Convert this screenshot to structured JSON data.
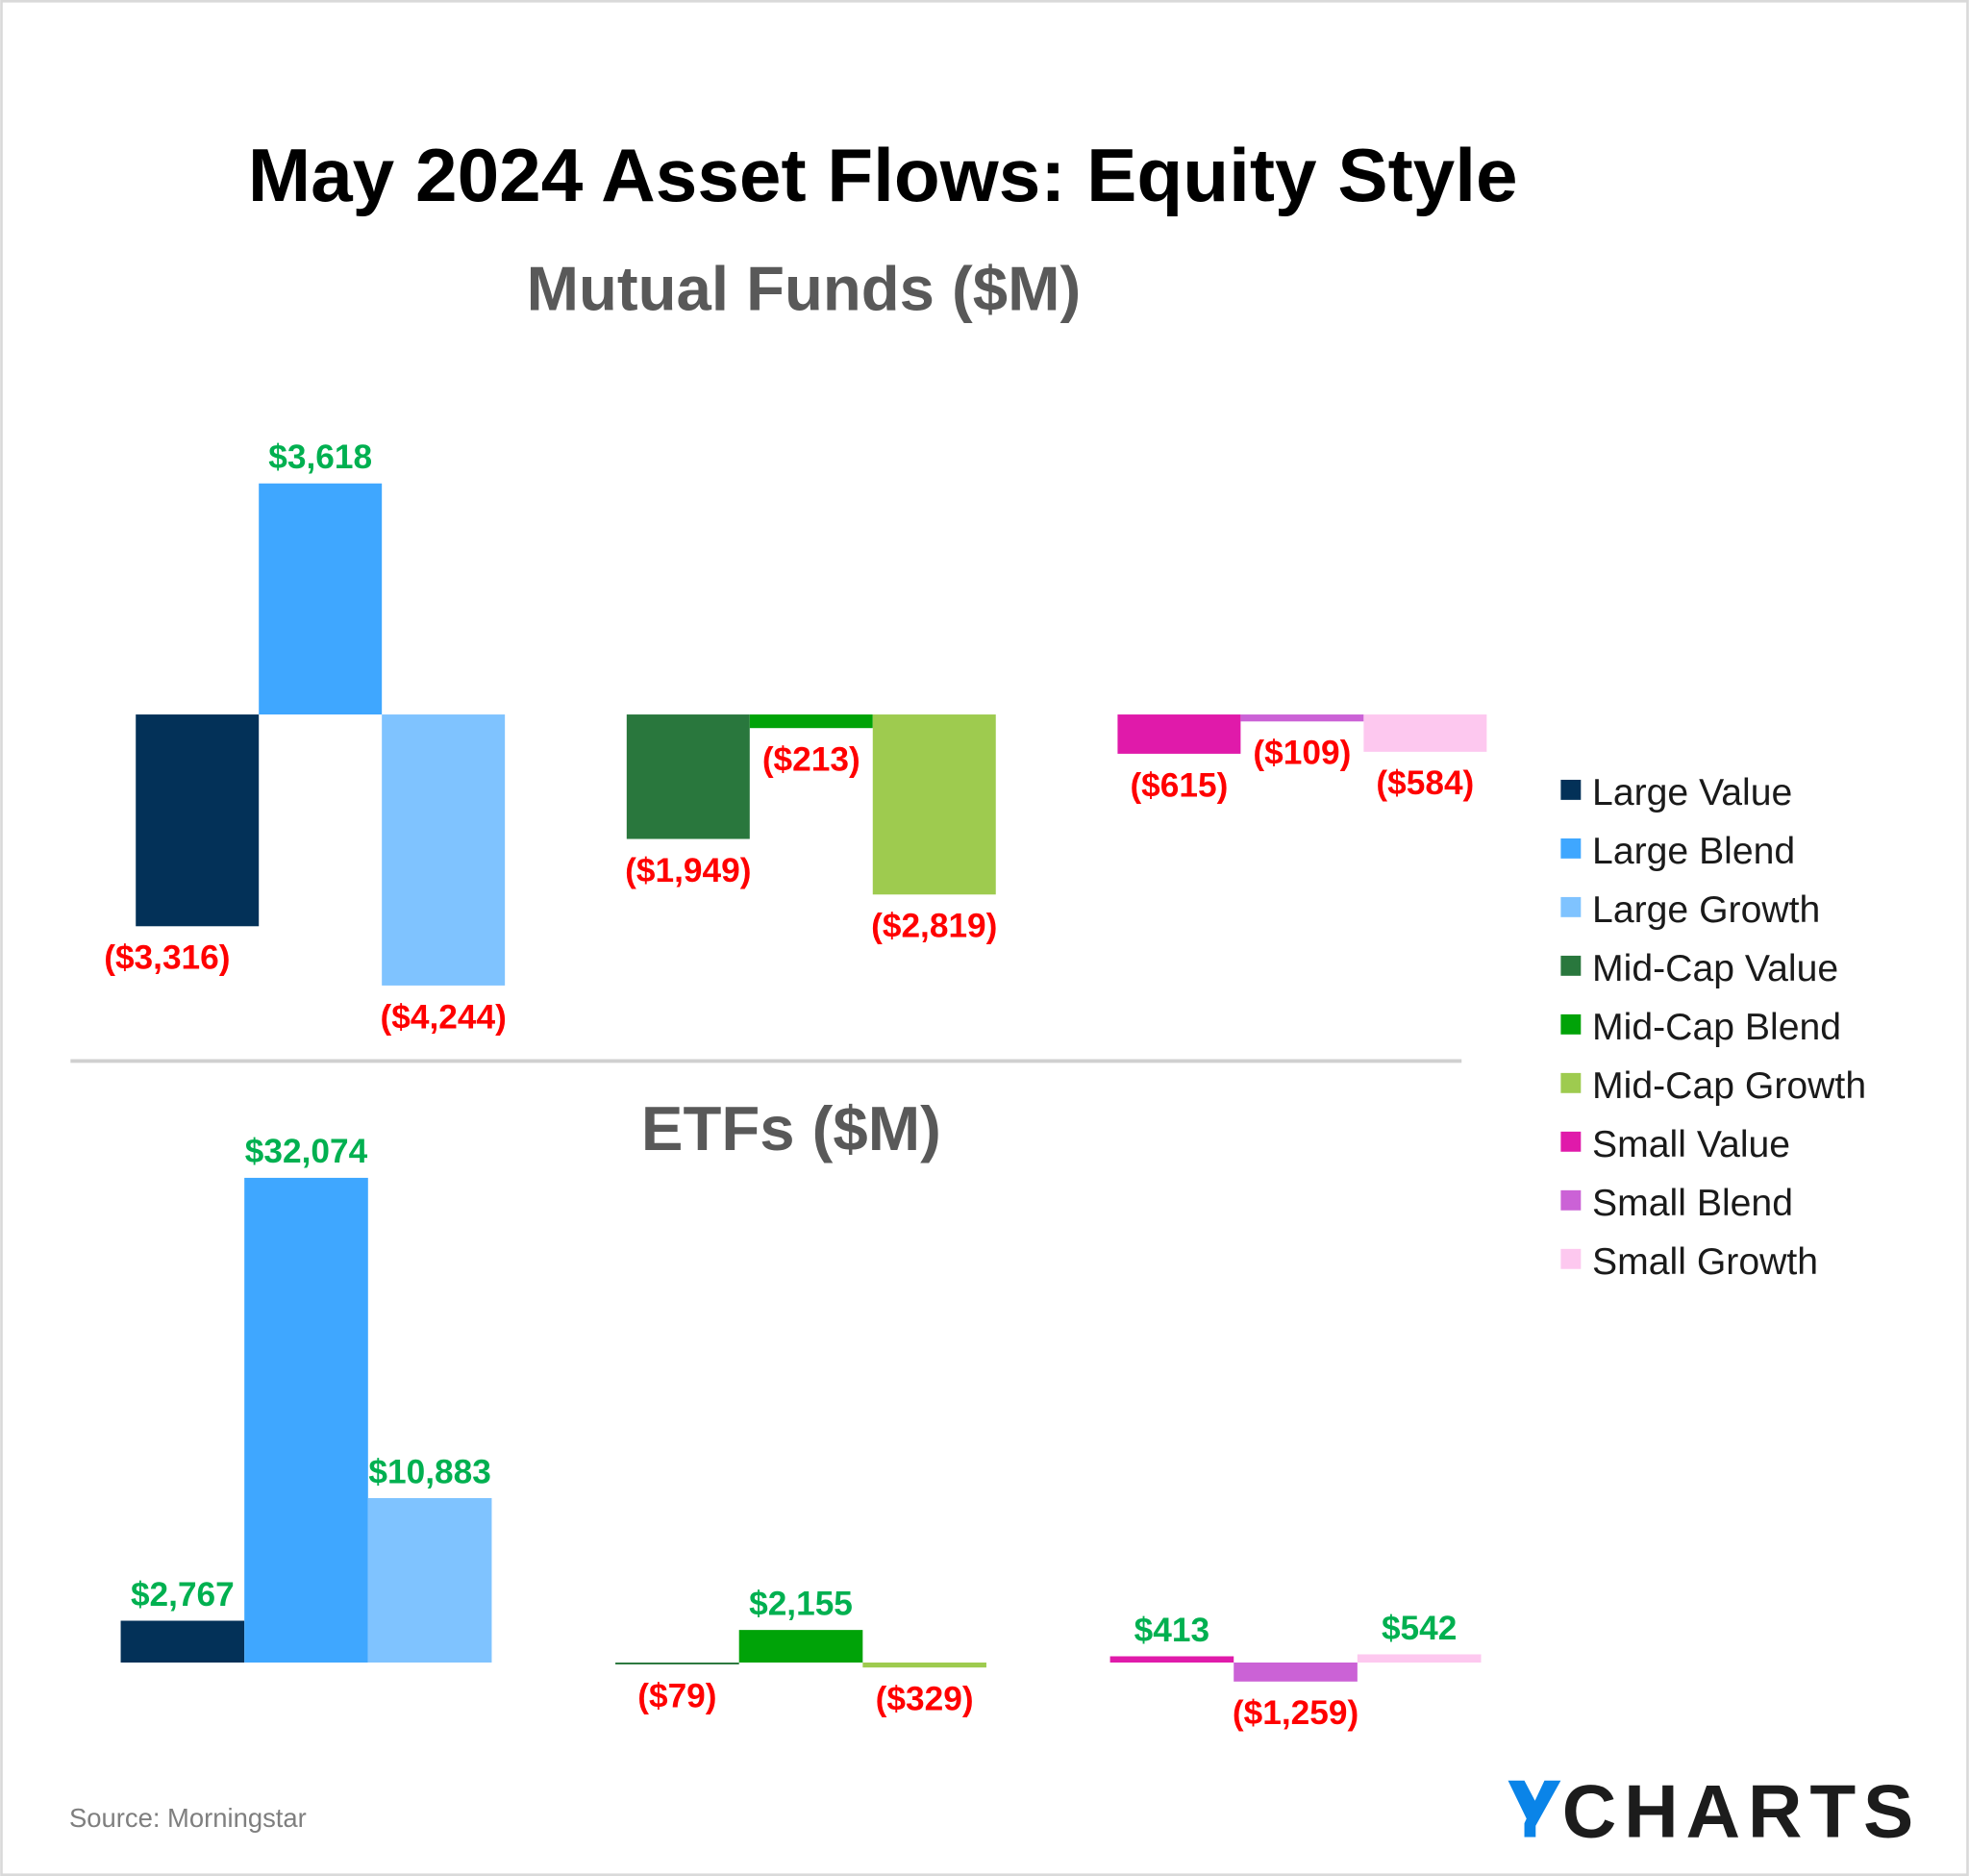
{
  "title": "May 2024 Asset Flows: Equity Style",
  "source": "Source: Morningstar",
  "logo": "YCHARTS",
  "colors": {
    "positive_label": "#00b050",
    "negative_label": "#ff0000",
    "logo_y": "#0a84e8",
    "logo_text": "#1c1c1c"
  },
  "legend": [
    {
      "name": "Large Value",
      "color": "#033158"
    },
    {
      "name": "Large Blend",
      "color": "#3fa7ff"
    },
    {
      "name": "Large Growth",
      "color": "#7fc3ff"
    },
    {
      "name": "Mid-Cap Value",
      "color": "#29773d"
    },
    {
      "name": "Mid-Cap Blend",
      "color": "#00a308"
    },
    {
      "name": "Mid-Cap Growth",
      "color": "#9ecb4f"
    },
    {
      "name": "Small Value",
      "color": "#e01aaa"
    },
    {
      "name": "Small Blend",
      "color": "#cb62d6"
    },
    {
      "name": "Small Growth",
      "color": "#fdc8ef"
    }
  ],
  "chart_data": [
    {
      "type": "bar",
      "title": "Mutual Funds ($M)",
      "categories": [
        "Large Value",
        "Large Blend",
        "Large Growth",
        "Mid-Cap Value",
        "Mid-Cap Blend",
        "Mid-Cap Growth",
        "Small Value",
        "Small Blend",
        "Small Growth"
      ],
      "values": [
        -3316,
        3618,
        -4244,
        -1949,
        -213,
        -2819,
        -615,
        -109,
        -584
      ],
      "labels": [
        "($3,316)",
        "$3,618",
        "($4,244)",
        "($1,949)",
        "($213)",
        "($2,819)",
        "($615)",
        "($109)",
        "($584)"
      ],
      "grid": false
    },
    {
      "type": "bar",
      "title": "ETFs ($M)",
      "categories": [
        "Large Value",
        "Large Blend",
        "Large Growth",
        "Mid-Cap Value",
        "Mid-Cap Blend",
        "Mid-Cap Growth",
        "Small Value",
        "Small Blend",
        "Small Growth"
      ],
      "values": [
        2767,
        32074,
        10883,
        -79,
        2155,
        -329,
        413,
        -1259,
        542
      ],
      "labels": [
        "$2,767",
        "$32,074",
        "$10,883",
        "($79)",
        "$2,155",
        "($329)",
        "$413",
        "($1,259)",
        "$542"
      ],
      "grid": false
    }
  ]
}
